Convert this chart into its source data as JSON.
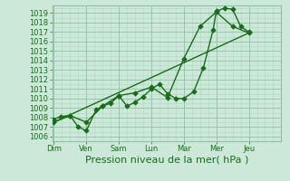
{
  "xlabel": "Pression niveau de la mer( hPa )",
  "days": [
    "Dim",
    "Ven",
    "Sam",
    "Lun",
    "Mar",
    "Mer",
    "Jeu"
  ],
  "day_positions": [
    0,
    1,
    2,
    3,
    4,
    5,
    6
  ],
  "xlim": [
    -0.05,
    6.35
  ],
  "ylim": [
    1005.5,
    1019.8
  ],
  "yticks": [
    1006,
    1007,
    1008,
    1009,
    1010,
    1011,
    1012,
    1013,
    1014,
    1015,
    1016,
    1017,
    1018,
    1019
  ],
  "line1_x": [
    0.0,
    0.2,
    0.5,
    0.75,
    1.0,
    1.3,
    1.5,
    1.75,
    2.0,
    2.25,
    2.5,
    2.75,
    3.0,
    3.25,
    3.5,
    3.75,
    4.0,
    4.3,
    4.6,
    4.9,
    5.0,
    5.25,
    5.5,
    5.75,
    6.0
  ],
  "line1_y": [
    1007.8,
    1008.1,
    1008.2,
    1007.0,
    1006.6,
    1008.8,
    1009.2,
    1009.5,
    1010.3,
    1009.2,
    1009.6,
    1010.2,
    1011.0,
    1011.5,
    1010.5,
    1010.0,
    1010.0,
    1010.7,
    1013.2,
    1017.2,
    1019.2,
    1019.5,
    1019.4,
    1017.6,
    1017.0
  ],
  "line2_x": [
    0.0,
    0.5,
    1.0,
    1.5,
    2.0,
    2.5,
    3.0,
    3.5,
    4.0,
    4.5,
    5.0,
    5.5,
    6.0
  ],
  "line2_y": [
    1007.5,
    1008.2,
    1007.5,
    1009.2,
    1010.3,
    1010.6,
    1011.2,
    1010.1,
    1014.2,
    1017.6,
    1019.1,
    1017.6,
    1016.9
  ],
  "line3_x": [
    0.0,
    6.0
  ],
  "line3_y": [
    1007.5,
    1016.9
  ],
  "line_color": "#1a6b1a",
  "bg_color": "#cce8d8",
  "plot_bg": "#cce8d8",
  "grid_minor_color": "#b0d8c0",
  "grid_major_color": "#90c0a8",
  "marker": "D",
  "markersize": 2.8,
  "linewidth": 1.0,
  "tick_fontsize": 6,
  "xlabel_fontsize": 8
}
